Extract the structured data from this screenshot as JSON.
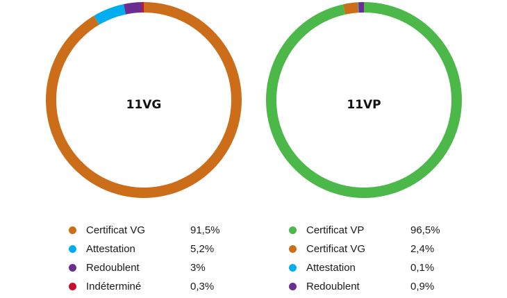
{
  "chart_data": [
    {
      "type": "pie",
      "title": "11VG",
      "slices": [
        {
          "label": "Certificat VG",
          "value": 91.5,
          "value_label": "91,5%",
          "color": "#cc6d1a"
        },
        {
          "label": "Attestation",
          "value": 5.2,
          "value_label": "5,2%",
          "color": "#00aeef"
        },
        {
          "label": "Redoublent",
          "value": 3,
          "value_label": "3%",
          "color": "#6a2d91"
        },
        {
          "label": "Indéterminé",
          "value": 0.3,
          "value_label": "0,3%",
          "color": "#c8102e"
        }
      ],
      "legend_placement": "bottom"
    },
    {
      "type": "pie",
      "title": "11VP",
      "slices": [
        {
          "label": "Certificat VP",
          "value": 96.5,
          "value_label": "96,5%",
          "color": "#4db84a"
        },
        {
          "label": "Certificat VG",
          "value": 2.4,
          "value_label": "2,4%",
          "color": "#cc6d1a"
        },
        {
          "label": "Attestation",
          "value": 0.1,
          "value_label": "0,1%",
          "color": "#00aeef"
        },
        {
          "label": "Redoublent",
          "value": 0.9,
          "value_label": "0,9%",
          "color": "#6a2d91"
        }
      ],
      "legend_placement": "bottom"
    }
  ]
}
